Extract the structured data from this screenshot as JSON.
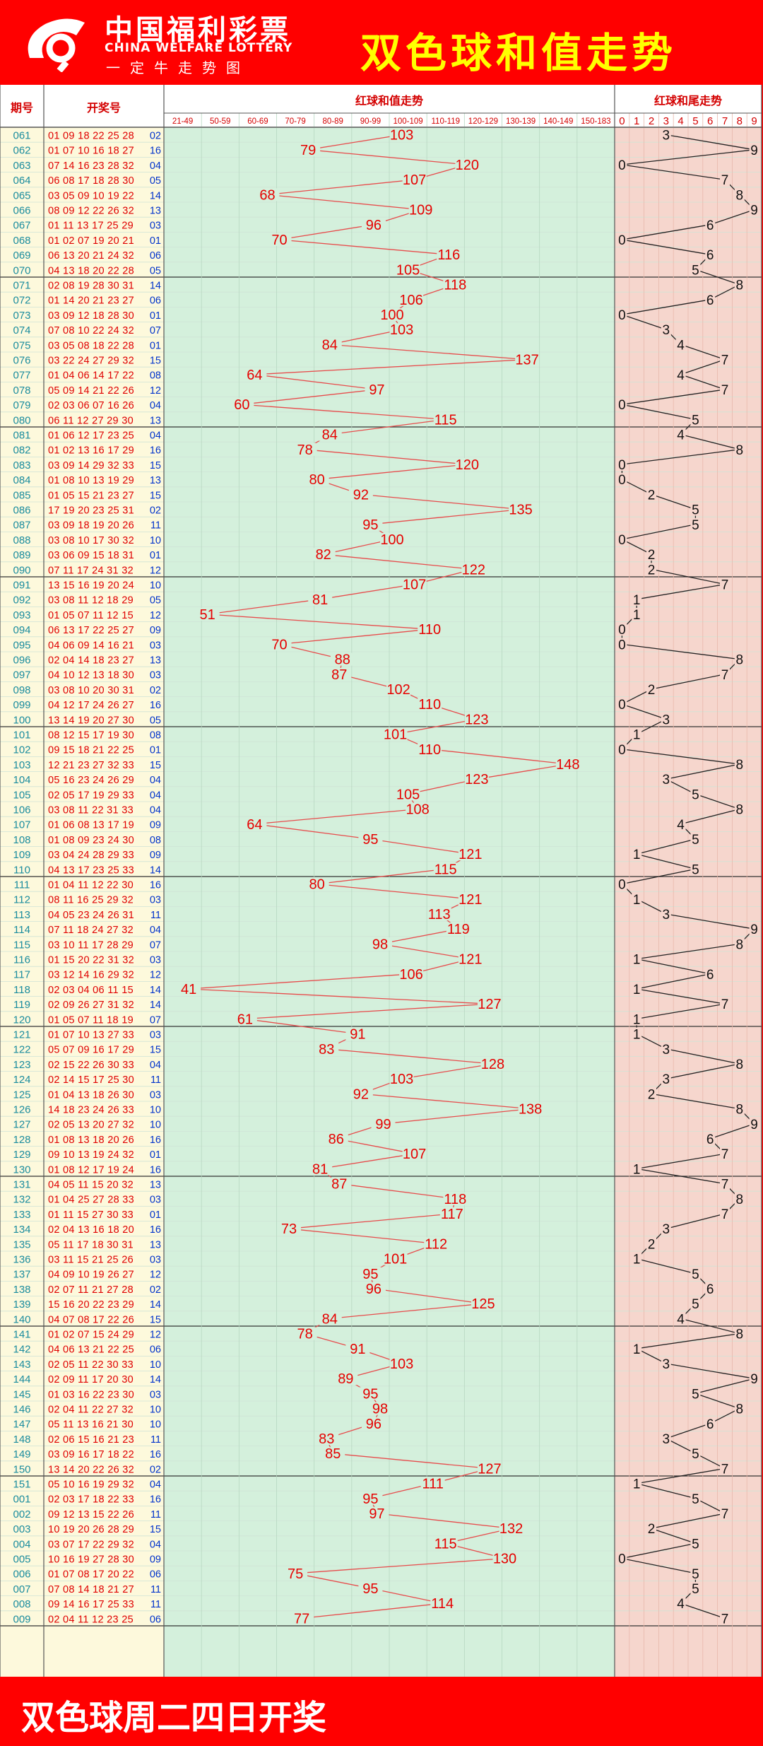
{
  "header": {
    "logo_cn": "中国福利彩票",
    "logo_en": "CHINA WELFARE LOTTERY",
    "logo_sub": "一定牛走势图",
    "title": "双色球和值走势"
  },
  "footer": {
    "text": "双色球周二四日开奖"
  },
  "colors": {
    "frame_red": "#ff0000",
    "sum_bg": "#d4f0dc",
    "tail_bg": "#f6d6cd",
    "line_red": "#e74c4c",
    "number_red": "#e60000",
    "period_teal": "#1a8c9e",
    "left_bg": "#fdf9dc"
  },
  "chart_data": {
    "type": "table",
    "columns": {
      "period": "期号",
      "draw": "开奖号",
      "sum_title": "红球和值走势",
      "tail_title": "红球和尾走势"
    },
    "sum_bins": [
      "21-49",
      "50-59",
      "60-69",
      "70-79",
      "80-89",
      "90-99",
      "100-109",
      "110-119",
      "120-129",
      "130-139",
      "140-149",
      "150-183"
    ],
    "tail_bins": [
      "0",
      "1",
      "2",
      "3",
      "4",
      "5",
      "6",
      "7",
      "8",
      "9"
    ],
    "rows": [
      {
        "p": "061",
        "r": "01 09 18 22 25 28",
        "b": "02",
        "s": 103,
        "t": 3
      },
      {
        "p": "062",
        "r": "01 07 10 16 18 27",
        "b": "16",
        "s": 79,
        "t": 9
      },
      {
        "p": "063",
        "r": "07 14 16 23 28 32",
        "b": "04",
        "s": 120,
        "t": 0
      },
      {
        "p": "064",
        "r": "06 08 17 18 28 30",
        "b": "05",
        "s": 107,
        "t": 7
      },
      {
        "p": "065",
        "r": "03 05 09 10 19 22",
        "b": "14",
        "s": 68,
        "t": 8
      },
      {
        "p": "066",
        "r": "08 09 12 22 26 32",
        "b": "13",
        "s": 109,
        "t": 9
      },
      {
        "p": "067",
        "r": "01 11 13 17 25 29",
        "b": "03",
        "s": 96,
        "t": 6
      },
      {
        "p": "068",
        "r": "01 02 07 19 20 21",
        "b": "01",
        "s": 70,
        "t": 0
      },
      {
        "p": "069",
        "r": "06 13 20 21 24 32",
        "b": "06",
        "s": 116,
        "t": 6
      },
      {
        "p": "070",
        "r": "04 13 18 20 22 28",
        "b": "05",
        "s": 105,
        "t": 5
      },
      {
        "p": "071",
        "r": "02 08 19 28 30 31",
        "b": "14",
        "s": 118,
        "t": 8
      },
      {
        "p": "072",
        "r": "01 14 20 21 23 27",
        "b": "06",
        "s": 106,
        "t": 6
      },
      {
        "p": "073",
        "r": "03 09 12 18 28 30",
        "b": "01",
        "s": 100,
        "t": 0
      },
      {
        "p": "074",
        "r": "07 08 10 22 24 32",
        "b": "07",
        "s": 103,
        "t": 3
      },
      {
        "p": "075",
        "r": "03 05 08 18 22 28",
        "b": "01",
        "s": 84,
        "t": 4
      },
      {
        "p": "076",
        "r": "03 22 24 27 29 32",
        "b": "15",
        "s": 137,
        "t": 7
      },
      {
        "p": "077",
        "r": "01 04 06 14 17 22",
        "b": "08",
        "s": 64,
        "t": 4
      },
      {
        "p": "078",
        "r": "05 09 14 21 22 26",
        "b": "12",
        "s": 97,
        "t": 7
      },
      {
        "p": "079",
        "r": "02 03 06 07 16 26",
        "b": "04",
        "s": 60,
        "t": 0
      },
      {
        "p": "080",
        "r": "06 11 12 27 29 30",
        "b": "13",
        "s": 115,
        "t": 5
      },
      {
        "p": "081",
        "r": "01 06 12 17 23 25",
        "b": "04",
        "s": 84,
        "t": 4
      },
      {
        "p": "082",
        "r": "01 02 13 16 17 29",
        "b": "16",
        "s": 78,
        "t": 8
      },
      {
        "p": "083",
        "r": "03 09 14 29 32 33",
        "b": "15",
        "s": 120,
        "t": 0
      },
      {
        "p": "084",
        "r": "01 08 10 13 19 29",
        "b": "13",
        "s": 80,
        "t": 0
      },
      {
        "p": "085",
        "r": "01 05 15 21 23 27",
        "b": "15",
        "s": 92,
        "t": 2
      },
      {
        "p": "086",
        "r": "17 19 20 23 25 31",
        "b": "02",
        "s": 135,
        "t": 5
      },
      {
        "p": "087",
        "r": "03 09 18 19 20 26",
        "b": "11",
        "s": 95,
        "t": 5
      },
      {
        "p": "088",
        "r": "03 08 10 17 30 32",
        "b": "10",
        "s": 100,
        "t": 0
      },
      {
        "p": "089",
        "r": "03 06 09 15 18 31",
        "b": "01",
        "s": 82,
        "t": 2
      },
      {
        "p": "090",
        "r": "07 11 17 24 31 32",
        "b": "12",
        "s": 122,
        "t": 2
      },
      {
        "p": "091",
        "r": "13 15 16 19 20 24",
        "b": "10",
        "s": 107,
        "t": 7
      },
      {
        "p": "092",
        "r": "03 08 11 12 18 29",
        "b": "05",
        "s": 81,
        "t": 1
      },
      {
        "p": "093",
        "r": "01 05 07 11 12 15",
        "b": "12",
        "s": 51,
        "t": 1
      },
      {
        "p": "094",
        "r": "06 13 17 22 25 27",
        "b": "09",
        "s": 110,
        "t": 0
      },
      {
        "p": "095",
        "r": "04 06 09 14 16 21",
        "b": "03",
        "s": 70,
        "t": 0
      },
      {
        "p": "096",
        "r": "02 04 14 18 23 27",
        "b": "13",
        "s": 88,
        "t": 8
      },
      {
        "p": "097",
        "r": "04 10 12 13 18 30",
        "b": "03",
        "s": 87,
        "t": 7
      },
      {
        "p": "098",
        "r": "03 08 10 20 30 31",
        "b": "02",
        "s": 102,
        "t": 2
      },
      {
        "p": "099",
        "r": "04 12 17 24 26 27",
        "b": "16",
        "s": 110,
        "t": 0
      },
      {
        "p": "100",
        "r": "13 14 19 20 27 30",
        "b": "05",
        "s": 123,
        "t": 3
      },
      {
        "p": "101",
        "r": "08 12 15 17 19 30",
        "b": "08",
        "s": 101,
        "t": 1
      },
      {
        "p": "102",
        "r": "09 15 18 21 22 25",
        "b": "01",
        "s": 110,
        "t": 0
      },
      {
        "p": "103",
        "r": "12 21 23 27 32 33",
        "b": "15",
        "s": 148,
        "t": 8
      },
      {
        "p": "104",
        "r": "05 16 23 24 26 29",
        "b": "04",
        "s": 123,
        "t": 3
      },
      {
        "p": "105",
        "r": "02 05 17 19 29 33",
        "b": "04",
        "s": 105,
        "t": 5
      },
      {
        "p": "106",
        "r": "03 08 11 22 31 33",
        "b": "04",
        "s": 108,
        "t": 8
      },
      {
        "p": "107",
        "r": "01 06 08 13 17 19",
        "b": "09",
        "s": 64,
        "t": 4
      },
      {
        "p": "108",
        "r": "01 08 09 23 24 30",
        "b": "08",
        "s": 95,
        "t": 5
      },
      {
        "p": "109",
        "r": "03 04 24 28 29 33",
        "b": "09",
        "s": 121,
        "t": 1
      },
      {
        "p": "110",
        "r": "04 13 17 23 25 33",
        "b": "14",
        "s": 115,
        "t": 5
      },
      {
        "p": "111",
        "r": "01 04 11 12 22 30",
        "b": "16",
        "s": 80,
        "t": 0
      },
      {
        "p": "112",
        "r": "08 11 16 25 29 32",
        "b": "03",
        "s": 121,
        "t": 1
      },
      {
        "p": "113",
        "r": "04 05 23 24 26 31",
        "b": "11",
        "s": 113,
        "t": 3
      },
      {
        "p": "114",
        "r": "07 11 18 24 27 32",
        "b": "04",
        "s": 119,
        "t": 9
      },
      {
        "p": "115",
        "r": "03 10 11 17 28 29",
        "b": "07",
        "s": 98,
        "t": 8
      },
      {
        "p": "116",
        "r": "01 15 20 22 31 32",
        "b": "03",
        "s": 121,
        "t": 1
      },
      {
        "p": "117",
        "r": "03 12 14 16 29 32",
        "b": "12",
        "s": 106,
        "t": 6
      },
      {
        "p": "118",
        "r": "02 03 04 06 11 15",
        "b": "14",
        "s": 41,
        "t": 1
      },
      {
        "p": "119",
        "r": "02 09 26 27 31 32",
        "b": "14",
        "s": 127,
        "t": 7
      },
      {
        "p": "120",
        "r": "01 05 07 11 18 19",
        "b": "07",
        "s": 61,
        "t": 1
      },
      {
        "p": "121",
        "r": "01 07 10 13 27 33",
        "b": "03",
        "s": 91,
        "t": 1
      },
      {
        "p": "122",
        "r": "05 07 09 16 17 29",
        "b": "15",
        "s": 83,
        "t": 3
      },
      {
        "p": "123",
        "r": "02 15 22 26 30 33",
        "b": "04",
        "s": 128,
        "t": 8
      },
      {
        "p": "124",
        "r": "02 14 15 17 25 30",
        "b": "11",
        "s": 103,
        "t": 3
      },
      {
        "p": "125",
        "r": "01 04 13 18 26 30",
        "b": "03",
        "s": 92,
        "t": 2
      },
      {
        "p": "126",
        "r": "14 18 23 24 26 33",
        "b": "10",
        "s": 138,
        "t": 8
      },
      {
        "p": "127",
        "r": "02 05 13 20 27 32",
        "b": "10",
        "s": 99,
        "t": 9
      },
      {
        "p": "128",
        "r": "01 08 13 18 20 26",
        "b": "16",
        "s": 86,
        "t": 6
      },
      {
        "p": "129",
        "r": "09 10 13 19 24 32",
        "b": "01",
        "s": 107,
        "t": 7
      },
      {
        "p": "130",
        "r": "01 08 12 17 19 24",
        "b": "16",
        "s": 81,
        "t": 1
      },
      {
        "p": "131",
        "r": "04 05 11 15 20 32",
        "b": "13",
        "s": 87,
        "t": 7
      },
      {
        "p": "132",
        "r": "01 04 25 27 28 33",
        "b": "03",
        "s": 118,
        "t": 8
      },
      {
        "p": "133",
        "r": "01 11 15 27 30 33",
        "b": "01",
        "s": 117,
        "t": 7
      },
      {
        "p": "134",
        "r": "02 04 13 16 18 20",
        "b": "16",
        "s": 73,
        "t": 3
      },
      {
        "p": "135",
        "r": "05 11 17 18 30 31",
        "b": "13",
        "s": 112,
        "t": 2
      },
      {
        "p": "136",
        "r": "03 11 15 21 25 26",
        "b": "03",
        "s": 101,
        "t": 1
      },
      {
        "p": "137",
        "r": "04 09 10 19 26 27",
        "b": "12",
        "s": 95,
        "t": 5
      },
      {
        "p": "138",
        "r": "02 07 11 21 27 28",
        "b": "02",
        "s": 96,
        "t": 6
      },
      {
        "p": "139",
        "r": "15 16 20 22 23 29",
        "b": "14",
        "s": 125,
        "t": 5
      },
      {
        "p": "140",
        "r": "04 07 08 17 22 26",
        "b": "15",
        "s": 84,
        "t": 4
      },
      {
        "p": "141",
        "r": "01 02 07 15 24 29",
        "b": "12",
        "s": 78,
        "t": 8
      },
      {
        "p": "142",
        "r": "04 06 13 21 22 25",
        "b": "06",
        "s": 91,
        "t": 1
      },
      {
        "p": "143",
        "r": "02 05 11 22 30 33",
        "b": "10",
        "s": 103,
        "t": 3
      },
      {
        "p": "144",
        "r": "02 09 11 17 20 30",
        "b": "14",
        "s": 89,
        "t": 9
      },
      {
        "p": "145",
        "r": "01 03 16 22 23 30",
        "b": "03",
        "s": 95,
        "t": 5
      },
      {
        "p": "146",
        "r": "02 04 11 22 27 32",
        "b": "10",
        "s": 98,
        "t": 8
      },
      {
        "p": "147",
        "r": "05 11 13 16 21 30",
        "b": "10",
        "s": 96,
        "t": 6
      },
      {
        "p": "148",
        "r": "02 06 15 16 21 23",
        "b": "11",
        "s": 83,
        "t": 3
      },
      {
        "p": "149",
        "r": "03 09 16 17 18 22",
        "b": "16",
        "s": 85,
        "t": 5
      },
      {
        "p": "150",
        "r": "13 14 20 22 26 32",
        "b": "02",
        "s": 127,
        "t": 7
      },
      {
        "p": "151",
        "r": "05 10 16 19 29 32",
        "b": "04",
        "s": 111,
        "t": 1
      },
      {
        "p": "001",
        "r": "02 03 17 18 22 33",
        "b": "16",
        "s": 95,
        "t": 5
      },
      {
        "p": "002",
        "r": "09 12 13 15 22 26",
        "b": "11",
        "s": 97,
        "t": 7
      },
      {
        "p": "003",
        "r": "10 19 20 26 28 29",
        "b": "15",
        "s": 132,
        "t": 2
      },
      {
        "p": "004",
        "r": "03 07 17 22 29 32",
        "b": "04",
        "s": 115,
        "t": 5
      },
      {
        "p": "005",
        "r": "10 16 19 27 28 30",
        "b": "09",
        "s": 130,
        "t": 0
      },
      {
        "p": "006",
        "r": "01 07 08 17 20 22",
        "b": "06",
        "s": 75,
        "t": 5
      },
      {
        "p": "007",
        "r": "07 08 14 18 21 27",
        "b": "11",
        "s": 95,
        "t": 5
      },
      {
        "p": "008",
        "r": "09 14 16 17 25 33",
        "b": "11",
        "s": 114,
        "t": 4
      },
      {
        "p": "009",
        "r": "02 04 11 12 23 25",
        "b": "06",
        "s": 77,
        "t": 7
      }
    ]
  }
}
